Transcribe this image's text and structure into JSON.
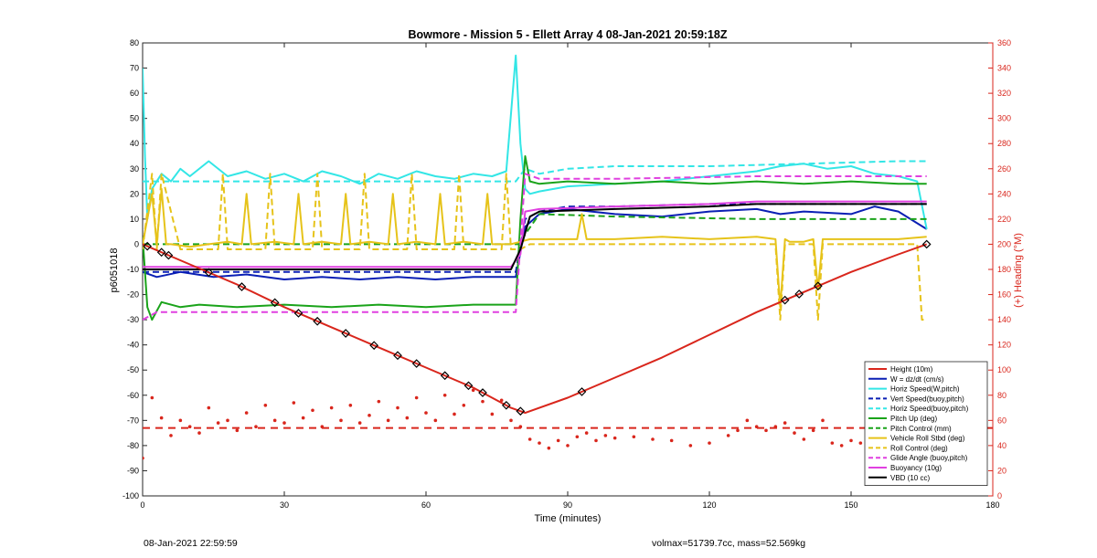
{
  "footer": {
    "left": "08-Jan-2021 22:59:59",
    "right": "volmax=51739.7cc, mass=52.569kg"
  },
  "colors": {
    "height": "#d9261c",
    "w": "#0a1fb4",
    "horiz": "#33e6e6",
    "vert": "#0a1fb4",
    "horizbuoy": "#33e6e6",
    "pitch": "#1aa31a",
    "pitchctl": "#1aa31a",
    "roll": "#e6c31a",
    "rollctl": "#e6c31a",
    "glide": "#e040e0",
    "buoy": "#e040e0",
    "vbd": "#000000",
    "heading": "#d9261c"
  },
  "chart_data": {
    "type": "line",
    "title": "Bowmore - Mission 5 - Ellett Array 4 08-Jan-2021 20:59:18Z",
    "xlabel": "Time (minutes)",
    "ylabel": "p6051018",
    "ylabel_right": "(+) Heading (°M)",
    "xlim": [
      0,
      180
    ],
    "ylim": [
      -100,
      80
    ],
    "ylim_right": [
      0,
      360
    ],
    "xticks": [
      0,
      30,
      60,
      90,
      120,
      150,
      180
    ],
    "yticks": [
      -100,
      -90,
      -80,
      -70,
      -60,
      -50,
      -40,
      -30,
      -20,
      -10,
      0,
      10,
      20,
      30,
      40,
      50,
      60,
      70,
      80
    ],
    "yticks_right": [
      0,
      20,
      40,
      60,
      80,
      100,
      120,
      140,
      160,
      180,
      200,
      220,
      240,
      260,
      280,
      300,
      320,
      340,
      360
    ],
    "grid": false,
    "legend_position": "bottom-right",
    "series": [
      {
        "name": "Height (10m)",
        "key": "height",
        "style": "solid",
        "width": 2,
        "x": [
          0,
          10,
          20,
          30,
          40,
          50,
          60,
          70,
          78,
          81,
          90,
          100,
          110,
          120,
          130,
          140,
          150,
          160,
          166
        ],
        "y": [
          0,
          -8,
          -16,
          -25,
          -33,
          -41,
          -49,
          -57,
          -65,
          -67,
          -61,
          -53,
          -45,
          -36,
          -27,
          -19,
          -11,
          -4,
          0
        ]
      },
      {
        "name": "W = dz/dt (cm/s)",
        "key": "w",
        "style": "solid",
        "width": 2,
        "x": [
          0,
          3,
          8,
          15,
          22,
          30,
          38,
          46,
          54,
          62,
          70,
          79,
          81,
          84,
          90,
          100,
          110,
          120,
          130,
          135,
          140,
          150,
          155,
          160,
          166
        ],
        "y": [
          -11,
          -13,
          -11,
          -13,
          -12,
          -14,
          -13,
          -14,
          -13,
          -14,
          -13,
          -13,
          7,
          12,
          14,
          12,
          11,
          13,
          14,
          12,
          13,
          12,
          15,
          13,
          6
        ]
      },
      {
        "name": "Horiz Speed(W,pitch)",
        "key": "horiz",
        "style": "solid",
        "width": 2,
        "x": [
          0,
          0.5,
          1,
          2,
          4,
          6,
          8,
          10,
          14,
          18,
          22,
          26,
          30,
          34,
          38,
          42,
          46,
          50,
          54,
          58,
          62,
          66,
          70,
          74,
          77,
          78,
          79,
          80,
          81,
          82,
          84,
          90,
          100,
          110,
          120,
          130,
          135,
          140,
          145,
          150,
          155,
          160,
          164,
          166
        ],
        "y": [
          70,
          35,
          10,
          22,
          28,
          25,
          30,
          27,
          33,
          27,
          29,
          26,
          28,
          25,
          29,
          27,
          24,
          28,
          26,
          29,
          27,
          26,
          28,
          27,
          29,
          52,
          75,
          40,
          22,
          20,
          21,
          23,
          24,
          25,
          27,
          29,
          31,
          32,
          30,
          31,
          28,
          27,
          25,
          6
        ]
      },
      {
        "name": "Vert Speed(buoy,pitch)",
        "key": "vert",
        "style": "dashed",
        "width": 2,
        "x": [
          0,
          79,
          81,
          84,
          90,
          100,
          120,
          140,
          160,
          166
        ],
        "y": [
          -11,
          -11,
          10,
          13,
          15,
          15,
          16,
          16,
          16,
          16
        ]
      },
      {
        "name": "Horiz Speed(buoy,pitch)",
        "key": "horizbuoy",
        "style": "dashed",
        "width": 2,
        "x": [
          0,
          79,
          81,
          84,
          90,
          100,
          120,
          140,
          160,
          166
        ],
        "y": [
          25,
          25,
          30,
          28,
          30,
          31,
          31,
          32,
          33,
          33
        ]
      },
      {
        "name": "Pitch Up (deg)",
        "key": "pitch",
        "style": "solid",
        "width": 2,
        "x": [
          0,
          1,
          2,
          4,
          8,
          12,
          20,
          30,
          40,
          50,
          60,
          70,
          79,
          80,
          81,
          82,
          84,
          90,
          100,
          110,
          120,
          130,
          140,
          150,
          160,
          166
        ],
        "y": [
          3,
          -25,
          -30,
          -23,
          -25,
          -24,
          -25,
          -24,
          -25,
          -24,
          -25,
          -24,
          -24,
          10,
          35,
          25,
          24,
          25,
          24,
          25,
          24,
          25,
          24,
          25,
          24,
          24
        ]
      },
      {
        "name": "Pitch Control (mm)",
        "key": "pitchctl",
        "style": "dashed",
        "width": 2,
        "x": [
          0,
          80,
          81,
          84,
          100,
          130,
          166
        ],
        "y": [
          0,
          0,
          4,
          12,
          11,
          10,
          10
        ]
      },
      {
        "name": "Vehicle Roll Stbd (deg)",
        "key": "roll",
        "style": "solid",
        "width": 2,
        "x": [
          0,
          2,
          3,
          4,
          5,
          6,
          10,
          14,
          18,
          21,
          22,
          23,
          28,
          32,
          33,
          34,
          38,
          42,
          43,
          44,
          48,
          52,
          53,
          54,
          58,
          62,
          63,
          64,
          68,
          72,
          73,
          74,
          78,
          80,
          82,
          90,
          92,
          93,
          94,
          100,
          110,
          120,
          130,
          134,
          135,
          136,
          137,
          140,
          142,
          143,
          144,
          150,
          160,
          166
        ],
        "y": [
          0,
          20,
          0,
          22,
          0,
          0,
          -1,
          0,
          1,
          0,
          20,
          0,
          1,
          0,
          20,
          0,
          1,
          0,
          20,
          0,
          1,
          0,
          20,
          0,
          1,
          0,
          20,
          0,
          1,
          0,
          20,
          0,
          0,
          1,
          2,
          2,
          2,
          12,
          2,
          2,
          3,
          2,
          3,
          2,
          -25,
          2,
          1,
          1,
          2,
          -18,
          2,
          2,
          2,
          3
        ]
      },
      {
        "name": "Roll Control (deg)",
        "key": "rollctl",
        "style": "dashed",
        "width": 2,
        "x": [
          0,
          2,
          3,
          4,
          8,
          16,
          17,
          18,
          26,
          27,
          28,
          36,
          37,
          38,
          46,
          47,
          48,
          56,
          57,
          58,
          66,
          67,
          68,
          76,
          77,
          78,
          80,
          82,
          100,
          134,
          135,
          136,
          142,
          143,
          144,
          164,
          165,
          166
        ],
        "y": [
          -2,
          28,
          -2,
          28,
          -2,
          -2,
          28,
          -2,
          -2,
          28,
          -2,
          -2,
          28,
          -2,
          -2,
          28,
          -2,
          -2,
          28,
          -2,
          -2,
          28,
          -2,
          -2,
          28,
          -2,
          -2,
          0,
          0,
          0,
          -30,
          0,
          0,
          -30,
          0,
          0,
          -30,
          -30
        ]
      },
      {
        "name": "Glide Angle (buoy,pitch)",
        "key": "glide",
        "style": "dashed",
        "width": 2,
        "x": [
          0,
          3,
          79,
          81,
          84,
          100,
          130,
          166
        ],
        "y": [
          -30,
          -27,
          -27,
          28,
          26,
          26,
          27,
          27
        ]
      },
      {
        "name": "Buoyancy (10g)",
        "key": "buoy",
        "style": "solid",
        "width": 2,
        "x": [
          0,
          78,
          80,
          81,
          84,
          100,
          120,
          130,
          166
        ],
        "y": [
          -9,
          -9,
          -4,
          13,
          14,
          15,
          16,
          17,
          17
        ]
      },
      {
        "name": "VBD (10 cc)",
        "key": "vbd",
        "style": "solid",
        "width": 2,
        "x": [
          0,
          78,
          80,
          82,
          84,
          100,
          120,
          130,
          166
        ],
        "y": [
          -10,
          -10,
          -2,
          11,
          13,
          14,
          15,
          16,
          16
        ]
      }
    ],
    "heading_scatter": {
      "name": "(+) Heading (°M)",
      "axis": "right",
      "x": [
        0,
        2,
        4,
        6,
        8,
        10,
        12,
        14,
        16,
        18,
        20,
        22,
        24,
        26,
        28,
        30,
        32,
        34,
        36,
        38,
        40,
        42,
        44,
        46,
        48,
        50,
        52,
        54,
        56,
        58,
        60,
        62,
        64,
        66,
        68,
        70,
        72,
        74,
        76,
        78,
        80,
        82,
        84,
        86,
        88,
        90,
        92,
        94,
        96,
        98,
        100,
        104,
        108,
        112,
        116,
        120,
        124,
        126,
        128,
        130,
        132,
        134,
        136,
        138,
        140,
        142,
        144,
        146,
        148,
        150,
        152,
        154,
        156,
        158,
        160,
        164,
        166
      ],
      "y": [
        30,
        78,
        62,
        48,
        60,
        55,
        50,
        70,
        58,
        60,
        52,
        66,
        55,
        72,
        60,
        58,
        74,
        62,
        68,
        55,
        70,
        60,
        72,
        58,
        64,
        75,
        60,
        70,
        62,
        78,
        66,
        60,
        80,
        65,
        72,
        84,
        75,
        65,
        76,
        60,
        55,
        45,
        42,
        38,
        44,
        40,
        47,
        50,
        44,
        48,
        46,
        47,
        45,
        44,
        40,
        42,
        48,
        52,
        60,
        55,
        52,
        55,
        58,
        50,
        45,
        52,
        60,
        42,
        40,
        44,
        42,
        46,
        48,
        44,
        52,
        60,
        60
      ]
    },
    "heading_dashed": {
      "name": "",
      "value": 54,
      "axis": "right"
    }
  }
}
